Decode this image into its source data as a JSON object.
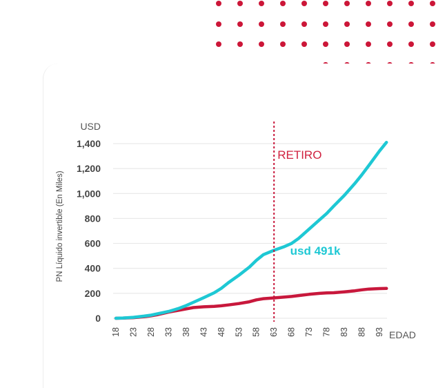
{
  "colors": {
    "accent_red": "#c8183c",
    "dot_red": "#cc1638",
    "accent_cyan": "#1ec8d4",
    "grid": "#e4e4e4",
    "text": "#444444"
  },
  "chart_data": {
    "type": "line",
    "y_unit": "USD",
    "ylabel": "PN Líquido invertible (En Miles)",
    "xlabel": "EDAD",
    "ylim": [
      0,
      1400
    ],
    "yticks": [
      0,
      200,
      400,
      600,
      800,
      1000,
      1200,
      1400
    ],
    "ytick_labels": [
      "0",
      "200",
      "400",
      "600",
      "800",
      "1,000",
      "1,200",
      "1,400"
    ],
    "xticks": [
      18,
      23,
      28,
      33,
      38,
      43,
      48,
      53,
      58,
      63,
      68,
      73,
      78,
      83,
      88,
      93
    ],
    "xlim": [
      18,
      95
    ],
    "grid": true,
    "retirement": {
      "age": 63,
      "label": "RETIRO"
    },
    "annotation": {
      "text": "usd 491k",
      "x": 68,
      "y": 540
    },
    "series": [
      {
        "color": "#1ec8d4",
        "x": [
          18,
          20,
          23,
          26,
          28,
          30,
          33,
          36,
          38,
          40,
          43,
          46,
          48,
          50,
          53,
          56,
          58,
          60,
          63,
          66,
          68,
          70,
          73,
          76,
          78,
          80,
          83,
          86,
          88,
          90,
          93,
          95
        ],
        "values": [
          0,
          2,
          8,
          17,
          25,
          37,
          55,
          80,
          102,
          127,
          165,
          205,
          240,
          285,
          345,
          410,
          465,
          510,
          545,
          575,
          600,
          640,
          715,
          790,
          840,
          900,
          985,
          1080,
          1150,
          1225,
          1340,
          1410
        ]
      },
      {
        "color": "#c8183c",
        "x": [
          18,
          20,
          23,
          26,
          28,
          30,
          33,
          36,
          38,
          40,
          43,
          46,
          48,
          50,
          53,
          56,
          58,
          60,
          63,
          66,
          68,
          70,
          73,
          76,
          78,
          80,
          83,
          86,
          88,
          90,
          93,
          95
        ],
        "values": [
          0,
          1,
          5,
          12,
          20,
          30,
          50,
          65,
          75,
          86,
          92,
          96,
          100,
          107,
          118,
          132,
          148,
          157,
          163,
          170,
          175,
          182,
          192,
          200,
          203,
          205,
          212,
          220,
          228,
          234,
          238,
          239
        ]
      }
    ]
  }
}
